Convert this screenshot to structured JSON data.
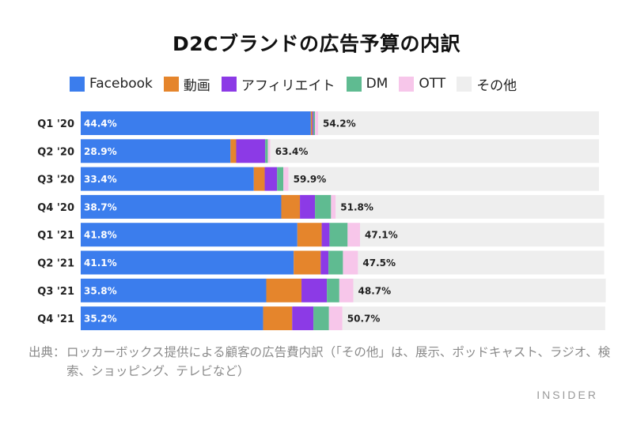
{
  "title": "D2Cブランドの広告予算の内訳",
  "legend": [
    {
      "label": "Facebook",
      "color": "#3b7ded"
    },
    {
      "label": "動画",
      "color": "#e5852c"
    },
    {
      "label": "アフィリエイト",
      "color": "#8c3ae6"
    },
    {
      "label": "DM",
      "color": "#5fbb91"
    },
    {
      "label": "OTT",
      "color": "#f7c6ea"
    },
    {
      "label": "その他",
      "color": "#eeeeee"
    }
  ],
  "chart_data": {
    "type": "bar",
    "orientation": "horizontal",
    "stacked": true,
    "unit": "%",
    "xlim": [
      0,
      100
    ],
    "grid": false,
    "legend_position": "top",
    "categories": [
      "Q1 '20",
      "Q2 '20",
      "Q3 '20",
      "Q4 '20",
      "Q1 '21",
      "Q2 '21",
      "Q3 '21",
      "Q4 '21"
    ],
    "series": [
      {
        "name": "Facebook",
        "color": "#3b7ded",
        "values": [
          44.4,
          28.9,
          33.4,
          38.7,
          41.8,
          41.1,
          35.8,
          35.2
        ],
        "labels": [
          "44.4%",
          "28.9%",
          "33.4%",
          "38.7%",
          "41.8%",
          "41.1%",
          "35.8%",
          "35.2%"
        ]
      },
      {
        "name": "動画",
        "color": "#e5852c",
        "values": [
          0.3,
          1.1,
          2.1,
          3.6,
          4.7,
          5.2,
          6.8,
          5.6
        ]
      },
      {
        "name": "アフィリエイト",
        "color": "#8c3ae6",
        "values": [
          0.2,
          5.6,
          2.4,
          2.9,
          1.5,
          1.5,
          4.9,
          4.1
        ]
      },
      {
        "name": "DM",
        "color": "#5fbb91",
        "values": [
          0.3,
          0.5,
          1.2,
          3.1,
          3.5,
          2.8,
          2.4,
          3.0
        ]
      },
      {
        "name": "OTT",
        "color": "#f7c6ea",
        "values": [
          0.6,
          0.5,
          1.0,
          0.9,
          2.4,
          2.9,
          2.7,
          2.6
        ]
      },
      {
        "name": "その他",
        "color": "#eeeeee",
        "values": [
          54.2,
          63.4,
          59.9,
          51.8,
          47.1,
          47.5,
          48.7,
          50.7
        ],
        "labels": [
          "54.2%",
          "63.4%",
          "59.9%",
          "51.8%",
          "47.1%",
          "47.5%",
          "48.7%",
          "50.7%"
        ]
      }
    ]
  },
  "source": {
    "label": "出典：",
    "text": "ロッカーボックス提供による顧客の広告費内訳（「その他」は、展示、ポッドキャスト、ラジオ、検索、ショッピング、テレビなど）"
  },
  "brand": "INSIDER"
}
